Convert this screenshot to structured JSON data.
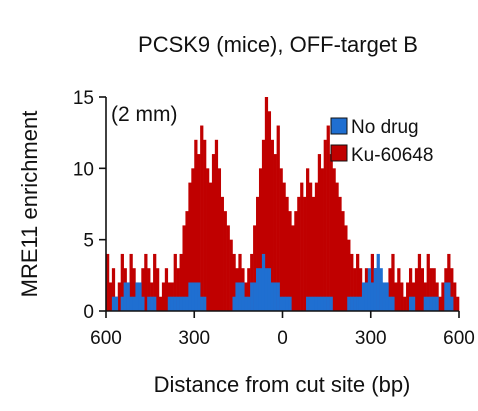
{
  "chart_data": {
    "type": "histogram",
    "title": "PCSK9 (mice), OFF-target B",
    "annotation": "(2 mm)",
    "xlabel": "Distance from cut site (bp)",
    "ylabel": "MRE11 enrichment",
    "xlim": [
      -600,
      600
    ],
    "ylim": [
      0,
      15
    ],
    "xticks": [
      -600,
      -300,
      0,
      300,
      600
    ],
    "xtick_labels": [
      "600",
      "300",
      "0",
      "300",
      "600"
    ],
    "yticks": [
      0,
      5,
      10,
      15
    ],
    "ytick_labels": [
      "0",
      "5",
      "10",
      "15"
    ],
    "legend_position": "top-right",
    "bin_width": 10,
    "series": [
      {
        "name": "Ku-60648",
        "color": "#c00000",
        "start": -600,
        "values": [
          4,
          2,
          3,
          1,
          2,
          4,
          3,
          2,
          4,
          3,
          2,
          1,
          3,
          4,
          3,
          2,
          4,
          3,
          1,
          2,
          3,
          2,
          2,
          4,
          3,
          4,
          6,
          7,
          9,
          10,
          12,
          11,
          13,
          12,
          10,
          9,
          11,
          12,
          10,
          8,
          7,
          6,
          5,
          4,
          3,
          4,
          3,
          2,
          3,
          4,
          6,
          8,
          10,
          12,
          15,
          14,
          12,
          11,
          13,
          10,
          9,
          8,
          7,
          6,
          7,
          8,
          9,
          8,
          10,
          9,
          8,
          9,
          11,
          10,
          12,
          13,
          11,
          10,
          9,
          8,
          7,
          6,
          5,
          4,
          3,
          4,
          3,
          2,
          3,
          2,
          4,
          3,
          3,
          2,
          1,
          2,
          3,
          4,
          2,
          3,
          2,
          1,
          2,
          3,
          2,
          3,
          4,
          3,
          2,
          4,
          3,
          3,
          2,
          1,
          2,
          3,
          4,
          3,
          2,
          1
        ]
      },
      {
        "name": "No drug",
        "color": "#1f6fd1",
        "start": -600,
        "values": [
          0,
          0,
          1,
          1,
          0,
          1,
          2,
          2,
          1,
          1,
          2,
          2,
          1,
          0,
          1,
          1,
          1,
          0,
          0,
          0,
          0,
          1,
          1,
          1,
          1,
          1,
          1,
          1,
          2,
          2,
          2,
          2,
          1,
          1,
          0,
          0,
          0,
          0,
          0,
          0,
          0,
          0,
          0,
          1,
          2,
          2,
          2,
          1,
          1,
          2,
          2,
          3,
          3,
          4,
          3,
          3,
          2,
          2,
          2,
          1,
          1,
          1,
          1,
          0,
          0,
          0,
          0,
          0,
          1,
          1,
          1,
          1,
          1,
          1,
          1,
          1,
          1,
          0,
          0,
          0,
          0,
          0,
          1,
          1,
          1,
          1,
          1,
          2,
          2,
          3,
          2,
          3,
          4,
          3,
          2,
          2,
          1,
          1,
          0,
          0,
          0,
          0,
          0,
          1,
          1,
          0,
          0,
          0,
          1,
          1,
          1,
          1,
          1,
          0,
          0,
          2,
          2,
          1,
          0,
          0
        ]
      }
    ]
  }
}
